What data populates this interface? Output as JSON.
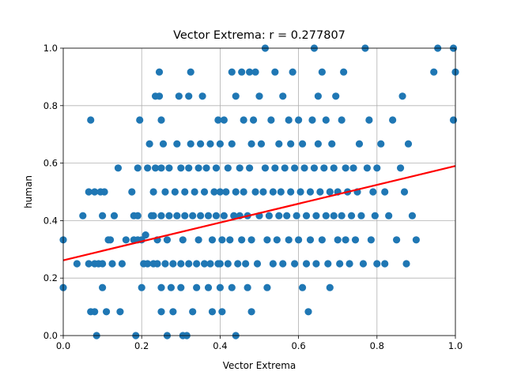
{
  "chart_data": {
    "type": "scatter",
    "title": "Vector Extrema: r = 0.277807",
    "xlabel": "Vector Extrema",
    "ylabel": "human",
    "xlim": [
      0.0,
      1.0
    ],
    "ylim": [
      0.0,
      1.0
    ],
    "xticks": [
      0.0,
      0.2,
      0.4,
      0.6,
      0.8,
      1.0
    ],
    "yticks": [
      0.0,
      0.2,
      0.4,
      0.6,
      0.8,
      1.0
    ],
    "xtick_labels": [
      "0.0",
      "0.2",
      "0.4",
      "0.6",
      "0.8",
      "1.0"
    ],
    "ytick_labels": [
      "0.0",
      "0.2",
      "0.4",
      "0.6",
      "0.8",
      "1.0"
    ],
    "grid": true,
    "colors": {
      "points": "#1f77b4",
      "fit_line": "#ff0000"
    },
    "fit_line": {
      "x": [
        0.0,
        1.0
      ],
      "y": [
        0.262,
        0.59
      ]
    },
    "points": [
      [
        0.0,
        0.333
      ],
      [
        0.0,
        0.167
      ],
      [
        0.035,
        0.25
      ],
      [
        0.05,
        0.417
      ],
      [
        0.065,
        0.25
      ],
      [
        0.065,
        0.5
      ],
      [
        0.07,
        0.75
      ],
      [
        0.07,
        0.083
      ],
      [
        0.08,
        0.5
      ],
      [
        0.08,
        0.25
      ],
      [
        0.085,
        0.0
      ],
      [
        0.08,
        0.083
      ],
      [
        0.09,
        0.25
      ],
      [
        0.095,
        0.5
      ],
      [
        0.1,
        0.417
      ],
      [
        0.1,
        0.25
      ],
      [
        0.1,
        0.167
      ],
      [
        0.105,
        0.5
      ],
      [
        0.11,
        0.083
      ],
      [
        0.115,
        0.333
      ],
      [
        0.12,
        0.333
      ],
      [
        0.125,
        0.25
      ],
      [
        0.13,
        0.417
      ],
      [
        0.14,
        0.583
      ],
      [
        0.145,
        0.083
      ],
      [
        0.15,
        0.25
      ],
      [
        0.16,
        0.333
      ],
      [
        0.175,
        0.5
      ],
      [
        0.18,
        0.417
      ],
      [
        0.18,
        0.333
      ],
      [
        0.185,
        0.0
      ],
      [
        0.19,
        0.583
      ],
      [
        0.19,
        0.417
      ],
      [
        0.19,
        0.333
      ],
      [
        0.195,
        0.75
      ],
      [
        0.2,
        0.333
      ],
      [
        0.2,
        0.167
      ],
      [
        0.205,
        0.25
      ],
      [
        0.21,
        0.35
      ],
      [
        0.215,
        0.583
      ],
      [
        0.215,
        0.25
      ],
      [
        0.22,
        0.667
      ],
      [
        0.225,
        0.417
      ],
      [
        0.23,
        0.5
      ],
      [
        0.23,
        0.25
      ],
      [
        0.23,
        0.417
      ],
      [
        0.235,
        0.833
      ],
      [
        0.235,
        0.583
      ],
      [
        0.24,
        0.25
      ],
      [
        0.24,
        0.333
      ],
      [
        0.245,
        0.917
      ],
      [
        0.245,
        0.833
      ],
      [
        0.25,
        0.75
      ],
      [
        0.25,
        0.583
      ],
      [
        0.25,
        0.417
      ],
      [
        0.25,
        0.167
      ],
      [
        0.25,
        0.083
      ],
      [
        0.255,
        0.667
      ],
      [
        0.26,
        0.5
      ],
      [
        0.26,
        0.25
      ],
      [
        0.265,
        0.333
      ],
      [
        0.265,
        0.0
      ],
      [
        0.27,
        0.417
      ],
      [
        0.27,
        0.583
      ],
      [
        0.275,
        0.167
      ],
      [
        0.28,
        0.25
      ],
      [
        0.28,
        0.083
      ],
      [
        0.285,
        0.5
      ],
      [
        0.29,
        0.667
      ],
      [
        0.29,
        0.417
      ],
      [
        0.295,
        0.833
      ],
      [
        0.3,
        0.583
      ],
      [
        0.3,
        0.25
      ],
      [
        0.3,
        0.167
      ],
      [
        0.305,
        0.333
      ],
      [
        0.305,
        0.0
      ],
      [
        0.31,
        0.5
      ],
      [
        0.31,
        0.417
      ],
      [
        0.315,
        0.0
      ],
      [
        0.32,
        0.833
      ],
      [
        0.32,
        0.583
      ],
      [
        0.32,
        0.25
      ],
      [
        0.325,
        0.917
      ],
      [
        0.325,
        0.667
      ],
      [
        0.33,
        0.417
      ],
      [
        0.33,
        0.083
      ],
      [
        0.335,
        0.5
      ],
      [
        0.34,
        0.25
      ],
      [
        0.34,
        0.167
      ],
      [
        0.345,
        0.333
      ],
      [
        0.345,
        0.583
      ],
      [
        0.35,
        0.417
      ],
      [
        0.35,
        0.667
      ],
      [
        0.355,
        0.833
      ],
      [
        0.36,
        0.5
      ],
      [
        0.36,
        0.25
      ],
      [
        0.365,
        0.583
      ],
      [
        0.37,
        0.417
      ],
      [
        0.37,
        0.167
      ],
      [
        0.375,
        0.667
      ],
      [
        0.375,
        0.25
      ],
      [
        0.38,
        0.333
      ],
      [
        0.38,
        0.083
      ],
      [
        0.385,
        0.5
      ],
      [
        0.39,
        0.583
      ],
      [
        0.39,
        0.417
      ],
      [
        0.395,
        0.25
      ],
      [
        0.395,
        0.75
      ],
      [
        0.4,
        0.667
      ],
      [
        0.4,
        0.5
      ],
      [
        0.4,
        0.25
      ],
      [
        0.4,
        0.167
      ],
      [
        0.405,
        0.333
      ],
      [
        0.405,
        0.083
      ],
      [
        0.41,
        0.417
      ],
      [
        0.41,
        0.75
      ],
      [
        0.415,
        0.5
      ],
      [
        0.42,
        0.583
      ],
      [
        0.42,
        0.25
      ],
      [
        0.425,
        0.333
      ],
      [
        0.43,
        0.917
      ],
      [
        0.43,
        0.667
      ],
      [
        0.43,
        0.167
      ],
      [
        0.435,
        0.417
      ],
      [
        0.44,
        0.833
      ],
      [
        0.44,
        0.5
      ],
      [
        0.44,
        0.0
      ],
      [
        0.445,
        0.25
      ],
      [
        0.45,
        0.583
      ],
      [
        0.45,
        0.417
      ],
      [
        0.455,
        0.917
      ],
      [
        0.455,
        0.333
      ],
      [
        0.46,
        0.75
      ],
      [
        0.46,
        0.5
      ],
      [
        0.465,
        0.25
      ],
      [
        0.47,
        0.417
      ],
      [
        0.47,
        0.167
      ],
      [
        0.475,
        0.917
      ],
      [
        0.475,
        0.583
      ],
      [
        0.48,
        0.667
      ],
      [
        0.48,
        0.333
      ],
      [
        0.48,
        0.083
      ],
      [
        0.485,
        0.75
      ],
      [
        0.49,
        0.5
      ],
      [
        0.49,
        0.917
      ],
      [
        0.495,
        0.25
      ],
      [
        0.5,
        0.833
      ],
      [
        0.5,
        0.417
      ],
      [
        0.505,
        0.667
      ],
      [
        0.51,
        0.5
      ],
      [
        0.515,
        1.0
      ],
      [
        0.515,
        0.583
      ],
      [
        0.52,
        0.333
      ],
      [
        0.52,
        0.167
      ],
      [
        0.525,
        0.417
      ],
      [
        0.53,
        0.75
      ],
      [
        0.535,
        0.5
      ],
      [
        0.535,
        0.25
      ],
      [
        0.54,
        0.917
      ],
      [
        0.54,
        0.583
      ],
      [
        0.545,
        0.333
      ],
      [
        0.55,
        0.667
      ],
      [
        0.55,
        0.417
      ],
      [
        0.555,
        0.5
      ],
      [
        0.56,
        0.833
      ],
      [
        0.56,
        0.25
      ],
      [
        0.565,
        0.583
      ],
      [
        0.57,
        0.417
      ],
      [
        0.575,
        0.75
      ],
      [
        0.575,
        0.333
      ],
      [
        0.58,
        0.667
      ],
      [
        0.58,
        0.5
      ],
      [
        0.585,
        0.917
      ],
      [
        0.59,
        0.25
      ],
      [
        0.59,
        0.583
      ],
      [
        0.595,
        0.417
      ],
      [
        0.6,
        0.75
      ],
      [
        0.6,
        0.333
      ],
      [
        0.605,
        0.5
      ],
      [
        0.61,
        0.667
      ],
      [
        0.61,
        0.167
      ],
      [
        0.615,
        0.583
      ],
      [
        0.62,
        0.25
      ],
      [
        0.62,
        0.417
      ],
      [
        0.625,
        0.083
      ],
      [
        0.63,
        0.5
      ],
      [
        0.63,
        0.333
      ],
      [
        0.635,
        0.75
      ],
      [
        0.64,
        1.0
      ],
      [
        0.64,
        0.583
      ],
      [
        0.645,
        0.417
      ],
      [
        0.645,
        0.25
      ],
      [
        0.65,
        0.833
      ],
      [
        0.65,
        0.667
      ],
      [
        0.655,
        0.5
      ],
      [
        0.66,
        0.917
      ],
      [
        0.66,
        0.333
      ],
      [
        0.665,
        0.583
      ],
      [
        0.67,
        0.75
      ],
      [
        0.67,
        0.417
      ],
      [
        0.675,
        0.25
      ],
      [
        0.68,
        0.5
      ],
      [
        0.68,
        0.167
      ],
      [
        0.685,
        0.667
      ],
      [
        0.69,
        0.583
      ],
      [
        0.69,
        0.417
      ],
      [
        0.695,
        0.833
      ],
      [
        0.7,
        0.5
      ],
      [
        0.7,
        0.333
      ],
      [
        0.705,
        0.25
      ],
      [
        0.71,
        0.75
      ],
      [
        0.71,
        0.417
      ],
      [
        0.715,
        0.917
      ],
      [
        0.72,
        0.583
      ],
      [
        0.72,
        0.333
      ],
      [
        0.725,
        0.5
      ],
      [
        0.73,
        0.25
      ],
      [
        0.735,
        0.417
      ],
      [
        0.74,
        0.583
      ],
      [
        0.745,
        0.333
      ],
      [
        0.75,
        0.5
      ],
      [
        0.755,
        0.667
      ],
      [
        0.76,
        0.417
      ],
      [
        0.765,
        0.25
      ],
      [
        0.77,
        1.0
      ],
      [
        0.775,
        0.583
      ],
      [
        0.78,
        0.75
      ],
      [
        0.785,
        0.333
      ],
      [
        0.79,
        0.5
      ],
      [
        0.795,
        0.417
      ],
      [
        0.8,
        0.583
      ],
      [
        0.8,
        0.25
      ],
      [
        0.81,
        0.667
      ],
      [
        0.82,
        0.5
      ],
      [
        0.82,
        0.25
      ],
      [
        0.83,
        0.417
      ],
      [
        0.84,
        0.75
      ],
      [
        0.85,
        0.333
      ],
      [
        0.86,
        0.583
      ],
      [
        0.865,
        0.833
      ],
      [
        0.87,
        0.5
      ],
      [
        0.875,
        0.25
      ],
      [
        0.88,
        0.667
      ],
      [
        0.89,
        0.417
      ],
      [
        0.9,
        0.333
      ],
      [
        0.945,
        0.917
      ],
      [
        0.955,
        1.0
      ],
      [
        0.995,
        1.0
      ],
      [
        0.995,
        0.75
      ],
      [
        1.0,
        0.917
      ]
    ]
  }
}
